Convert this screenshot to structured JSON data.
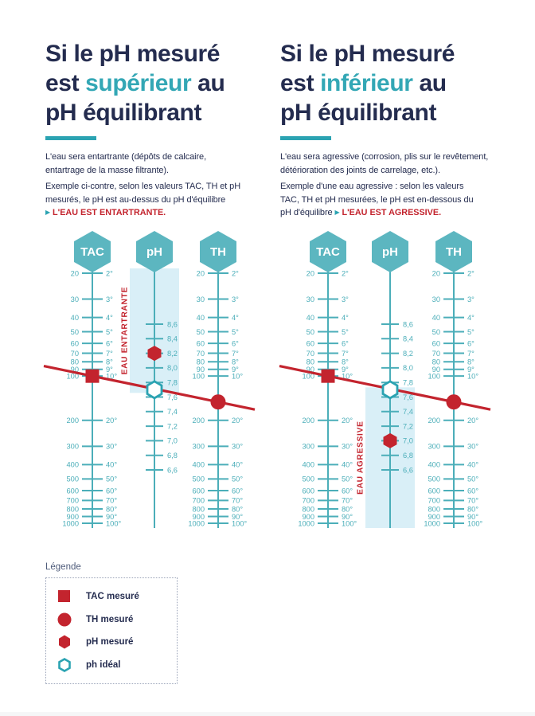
{
  "colors": {
    "navy": "#242C4F",
    "teal": "#4BAEB9",
    "teal_dark": "#2BA3B2",
    "hex_fill": "#5CB6C0",
    "band": "#D9EFF7",
    "red": "#C3242E",
    "accent": "#33A7B5",
    "legend_title": "#4E5B7A"
  },
  "left_section": {
    "heading": {
      "line1": "Si le pH mesuré",
      "line2_pre": "est ",
      "line2_accent": "supérieur",
      "line2_post": " au",
      "line3": "pH équilibrant"
    },
    "para1": "L'eau sera entartrante (dépôts de calcaire,\nentartrage de la masse filtrante).",
    "para2": "Exemple ci-contre, selon les valeurs TAC, TH et pH\nmesurés, le pH est au-dessus du pH d'équilibre\n",
    "arrow": "▶",
    "callout": "L'EAU EST ENTARTRANTE."
  },
  "right_section": {
    "heading": {
      "line1": "Si le pH mesuré",
      "line2_pre": "est ",
      "line2_accent": "inférieur",
      "line2_post": " au",
      "line3": "pH équilibrant"
    },
    "para1": "L'eau sera agressive (corrosion, plis sur le revêtement,\ndétérioration des joints de carrelage, etc.).",
    "para2": "Exemple d'une eau agressive : selon les valeurs\nTAC, TH et pH mesurées, le pH est en-dessous du\npH d'équilibre ",
    "arrow": "▶",
    "callout": "L'EAU EST AGRESSIVE."
  },
  "chart_data": [
    {
      "type": "nomogram",
      "title_badges": [
        "TAC",
        "pH",
        "TH"
      ],
      "tac_axis": {
        "scale": "log",
        "min": 20,
        "max": 1000
      },
      "th_axis": {
        "scale": "log",
        "min": 20,
        "max": 1000
      },
      "ph_axis": {
        "scale": "linear",
        "min": 6.6,
        "max": 8.6
      },
      "tac_values": [
        20,
        30,
        40,
        50,
        60,
        70,
        80,
        90,
        100,
        200,
        300,
        400,
        500,
        600,
        700,
        800,
        900,
        1000
      ],
      "tac_labels": [
        "20",
        "30",
        "40",
        "50",
        "60",
        "70",
        "80",
        "90",
        "100",
        "200",
        "300",
        "400",
        "500",
        "600",
        "700",
        "800",
        "900",
        "1000"
      ],
      "degree_labels": [
        "2°",
        "3°",
        "4°",
        "5°",
        "6°",
        "7°",
        "8°",
        "9°",
        "10°",
        "20°",
        "30°",
        "40°",
        "50°",
        "60°",
        "70°",
        "80°",
        "90°",
        "100°"
      ],
      "ph_values": [
        8.6,
        8.4,
        8.2,
        8.0,
        7.8,
        7.6,
        7.4,
        7.2,
        7.0,
        6.8,
        6.6
      ],
      "ph_labels": [
        "8,6",
        "8,4",
        "8,2",
        "8,0",
        "7,8",
        "7,6",
        "7,4",
        "7,2",
        "7,0",
        "6,8",
        "6,6"
      ],
      "band": {
        "label": "EAU ENTARTRANTE",
        "zone": "above-ideal"
      },
      "markers": {
        "tac_measured": 100,
        "th_measured": 150,
        "ph_measured": 8.2,
        "ph_ideal": 7.7
      }
    },
    {
      "type": "nomogram",
      "title_badges": [
        "TAC",
        "pH",
        "TH"
      ],
      "tac_axis": {
        "scale": "log",
        "min": 20,
        "max": 1000
      },
      "th_axis": {
        "scale": "log",
        "min": 20,
        "max": 1000
      },
      "ph_axis": {
        "scale": "linear",
        "min": 6.6,
        "max": 8.6
      },
      "tac_values": [
        20,
        30,
        40,
        50,
        60,
        70,
        80,
        90,
        100,
        200,
        300,
        400,
        500,
        600,
        700,
        800,
        900,
        1000
      ],
      "tac_labels": [
        "20",
        "30",
        "40",
        "50",
        "60",
        "70",
        "80",
        "90",
        "100",
        "200",
        "300",
        "400",
        "500",
        "600",
        "700",
        "800",
        "900",
        "1000"
      ],
      "degree_labels": [
        "2°",
        "3°",
        "4°",
        "5°",
        "6°",
        "7°",
        "8°",
        "9°",
        "10°",
        "20°",
        "30°",
        "40°",
        "50°",
        "60°",
        "70°",
        "80°",
        "90°",
        "100°"
      ],
      "ph_values": [
        8.6,
        8.4,
        8.2,
        8.0,
        7.8,
        7.6,
        7.4,
        7.2,
        7.0,
        6.8,
        6.6
      ],
      "ph_labels": [
        "8,6",
        "8,4",
        "8,2",
        "8,0",
        "7,8",
        "7,6",
        "7,4",
        "7,2",
        "7,0",
        "6,8",
        "6,6"
      ],
      "band": {
        "label": "EAU AGRESSIVE",
        "zone": "below-ideal"
      },
      "markers": {
        "tac_measured": 100,
        "th_measured": 150,
        "ph_measured": 7.0,
        "ph_ideal": 7.7
      }
    }
  ],
  "legend": {
    "title": "Légende",
    "items": [
      {
        "icon": "square-red",
        "label": "TAC mesuré"
      },
      {
        "icon": "circle-red",
        "label": "TH mesuré"
      },
      {
        "icon": "hexagon-red",
        "label": "pH mesuré"
      },
      {
        "icon": "hexagon-outline-teal",
        "label": "ph idéal"
      }
    ]
  }
}
